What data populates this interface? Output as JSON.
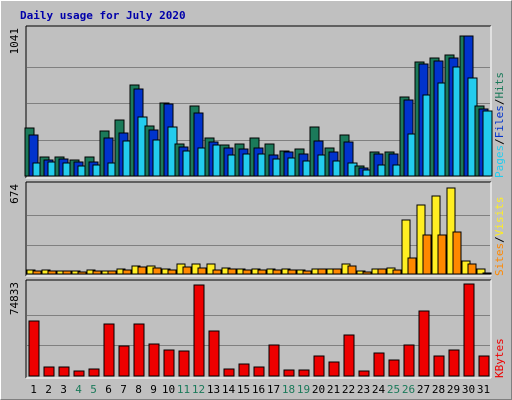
{
  "title": "Daily usage for July 2020",
  "colors": {
    "background": "#c0c0c0",
    "panel": "#c0c0c0",
    "hits": "#1b7a5a",
    "files": "#0033cc",
    "pages": "#22ccee",
    "visits": "#ffee22",
    "sites": "#ff8800",
    "kbytes": "#ee0000",
    "title": "#0000aa",
    "weekend": "#1b7a5a",
    "weekday": "#000000"
  },
  "chart_data": [
    {
      "type": "bar",
      "name": "hits-files-pages",
      "categories": [
        "1",
        "2",
        "3",
        "4",
        "5",
        "6",
        "7",
        "8",
        "9",
        "10",
        "11",
        "12",
        "13",
        "14",
        "15",
        "16",
        "17",
        "18",
        "19",
        "20",
        "21",
        "22",
        "23",
        "24",
        "25",
        "26",
        "27",
        "28",
        "29",
        "30",
        "31"
      ],
      "ymax_label": "1041",
      "ylim": [
        0,
        1041
      ],
      "legend": [
        {
          "text": "Pages",
          "color": "#22ccee"
        },
        {
          "text": "/",
          "color": "#000000"
        },
        {
          "text": "Files",
          "color": "#0033cc"
        },
        {
          "text": "/",
          "color": "#000000"
        },
        {
          "text": "Hits",
          "color": "#1b7a5a"
        }
      ],
      "series": [
        {
          "name": "Hits",
          "color": "#1b7a5a",
          "values": [
            340,
            135,
            135,
            115,
            135,
            320,
            400,
            650,
            360,
            520,
            230,
            500,
            270,
            220,
            230,
            270,
            230,
            180,
            190,
            350,
            200,
            290,
            70,
            170,
            170,
            560,
            810,
            840,
            860,
            1000,
            500
          ]
        },
        {
          "name": "Files",
          "color": "#0033cc",
          "values": [
            290,
            115,
            120,
            100,
            100,
            270,
            310,
            620,
            330,
            510,
            210,
            450,
            240,
            200,
            190,
            200,
            150,
            170,
            160,
            250,
            170,
            240,
            60,
            160,
            160,
            540,
            800,
            820,
            840,
            1000,
            480
          ]
        },
        {
          "name": "Pages",
          "color": "#22ccee",
          "values": [
            90,
            100,
            90,
            70,
            80,
            90,
            250,
            420,
            260,
            350,
            180,
            200,
            220,
            150,
            160,
            160,
            120,
            130,
            110,
            150,
            110,
            90,
            40,
            80,
            80,
            300,
            580,
            660,
            780,
            700,
            460
          ]
        }
      ]
    },
    {
      "type": "bar",
      "name": "visits-sites",
      "ymax_label": "674",
      "ylim": [
        0,
        674
      ],
      "legend": [
        {
          "text": "Sites",
          "color": "#ff8800"
        },
        {
          "text": "/",
          "color": "#000000"
        },
        {
          "text": "Visits",
          "color": "#ffee22"
        }
      ],
      "series": [
        {
          "name": "Visits",
          "color": "#ffee22",
          "values": [
            30,
            30,
            25,
            20,
            30,
            25,
            40,
            60,
            60,
            40,
            80,
            80,
            75,
            45,
            40,
            35,
            40,
            40,
            30,
            40,
            40,
            80,
            25,
            40,
            45,
            410,
            530,
            600,
            660,
            100,
            35
          ]
        },
        {
          "name": "Sites",
          "color": "#ff8800",
          "values": [
            25,
            25,
            20,
            15,
            25,
            25,
            30,
            50,
            45,
            30,
            50,
            45,
            30,
            35,
            30,
            30,
            30,
            30,
            25,
            35,
            35,
            60,
            15,
            35,
            30,
            120,
            300,
            300,
            320,
            80,
            10
          ]
        }
      ]
    },
    {
      "type": "bar",
      "name": "kbytes",
      "ymax_label": "74833",
      "ylim": [
        0,
        74833
      ],
      "legend": [
        {
          "text": "KBytes",
          "color": "#ee0000"
        }
      ],
      "series": [
        {
          "name": "KBytes",
          "color": "#ee0000",
          "values": [
            45000,
            7000,
            7000,
            4000,
            6000,
            42000,
            24000,
            42000,
            26000,
            21000,
            20000,
            74000,
            37000,
            6000,
            10000,
            7000,
            25000,
            5000,
            5000,
            16000,
            11000,
            33000,
            4000,
            19000,
            13000,
            25000,
            53000,
            16000,
            21000,
            75000,
            16000
          ]
        }
      ]
    }
  ],
  "x_labels": [
    "1",
    "2",
    "3",
    "4",
    "5",
    "6",
    "7",
    "8",
    "9",
    "10",
    "11",
    "12",
    "13",
    "14",
    "15",
    "16",
    "17",
    "18",
    "19",
    "20",
    "21",
    "22",
    "23",
    "24",
    "25",
    "26",
    "27",
    "28",
    "29",
    "30",
    "31"
  ],
  "weekend_days": [
    "4",
    "5",
    "11",
    "12",
    "18",
    "19",
    "25",
    "26"
  ]
}
